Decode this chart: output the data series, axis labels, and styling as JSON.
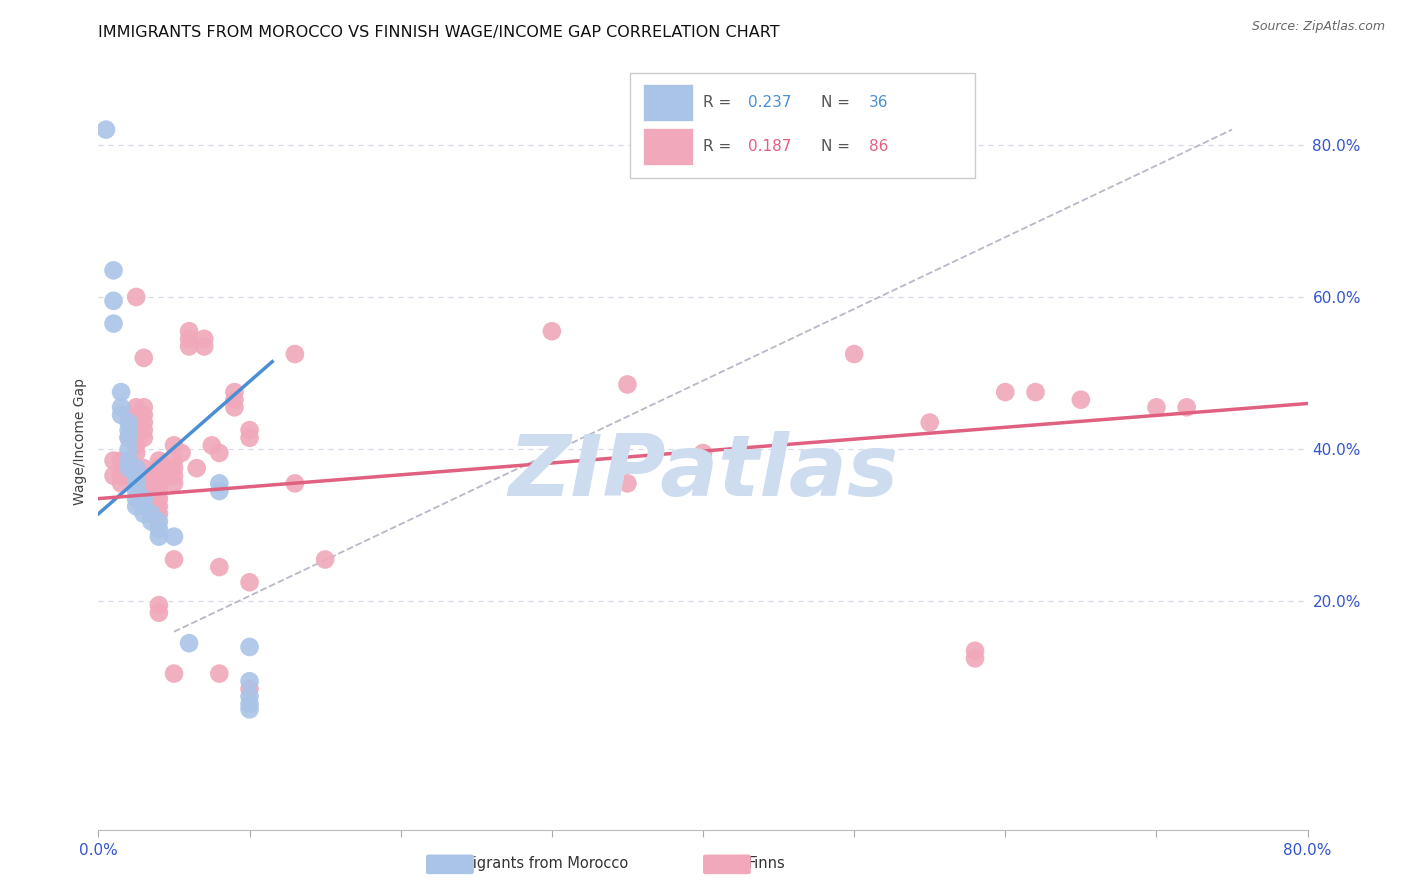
{
  "title": "IMMIGRANTS FROM MOROCCO VS FINNISH WAGE/INCOME GAP CORRELATION CHART",
  "source": "Source: ZipAtlas.com",
  "ylabel": "Wage/Income Gap",
  "watermark": "ZIPatlas",
  "watermark_color": "#cddcef",
  "blue_color": "#aac4e8",
  "pink_color": "#f0a8ba",
  "blue_line_color": "#4a8fd4",
  "pink_line_color": "#e06080",
  "dashed_line_color": "#b8b8c8",
  "grid_color": "#d8d8e8",
  "xmin": 0.0,
  "xmax": 0.8,
  "ymin": -0.1,
  "ymax": 0.92,
  "blue_scatter": [
    [
      0.005,
      0.82
    ],
    [
      0.01,
      0.635
    ],
    [
      0.01,
      0.595
    ],
    [
      0.01,
      0.565
    ],
    [
      0.015,
      0.475
    ],
    [
      0.015,
      0.455
    ],
    [
      0.015,
      0.445
    ],
    [
      0.02,
      0.435
    ],
    [
      0.02,
      0.425
    ],
    [
      0.02,
      0.415
    ],
    [
      0.02,
      0.4
    ],
    [
      0.02,
      0.385
    ],
    [
      0.02,
      0.375
    ],
    [
      0.025,
      0.375
    ],
    [
      0.025,
      0.365
    ],
    [
      0.025,
      0.355
    ],
    [
      0.025,
      0.345
    ],
    [
      0.025,
      0.335
    ],
    [
      0.025,
      0.325
    ],
    [
      0.03,
      0.335
    ],
    [
      0.03,
      0.325
    ],
    [
      0.03,
      0.315
    ],
    [
      0.035,
      0.315
    ],
    [
      0.035,
      0.305
    ],
    [
      0.04,
      0.305
    ],
    [
      0.04,
      0.295
    ],
    [
      0.04,
      0.285
    ],
    [
      0.05,
      0.285
    ],
    [
      0.06,
      0.145
    ],
    [
      0.08,
      0.345
    ],
    [
      0.08,
      0.355
    ],
    [
      0.1,
      0.095
    ],
    [
      0.1,
      0.075
    ],
    [
      0.1,
      0.14
    ],
    [
      0.1,
      0.065
    ],
    [
      0.1,
      0.058
    ]
  ],
  "pink_scatter": [
    [
      0.01,
      0.385
    ],
    [
      0.01,
      0.365
    ],
    [
      0.015,
      0.385
    ],
    [
      0.015,
      0.365
    ],
    [
      0.015,
      0.355
    ],
    [
      0.02,
      0.445
    ],
    [
      0.02,
      0.415
    ],
    [
      0.02,
      0.385
    ],
    [
      0.02,
      0.375
    ],
    [
      0.02,
      0.365
    ],
    [
      0.025,
      0.6
    ],
    [
      0.025,
      0.455
    ],
    [
      0.025,
      0.435
    ],
    [
      0.025,
      0.425
    ],
    [
      0.025,
      0.415
    ],
    [
      0.025,
      0.405
    ],
    [
      0.025,
      0.395
    ],
    [
      0.025,
      0.375
    ],
    [
      0.025,
      0.365
    ],
    [
      0.03,
      0.52
    ],
    [
      0.03,
      0.455
    ],
    [
      0.03,
      0.445
    ],
    [
      0.03,
      0.435
    ],
    [
      0.03,
      0.425
    ],
    [
      0.03,
      0.415
    ],
    [
      0.03,
      0.375
    ],
    [
      0.03,
      0.355
    ],
    [
      0.03,
      0.345
    ],
    [
      0.035,
      0.365
    ],
    [
      0.035,
      0.355
    ],
    [
      0.04,
      0.385
    ],
    [
      0.04,
      0.375
    ],
    [
      0.04,
      0.365
    ],
    [
      0.04,
      0.355
    ],
    [
      0.04,
      0.345
    ],
    [
      0.04,
      0.335
    ],
    [
      0.04,
      0.325
    ],
    [
      0.04,
      0.315
    ],
    [
      0.04,
      0.195
    ],
    [
      0.04,
      0.185
    ],
    [
      0.045,
      0.375
    ],
    [
      0.045,
      0.365
    ],
    [
      0.05,
      0.405
    ],
    [
      0.05,
      0.385
    ],
    [
      0.05,
      0.375
    ],
    [
      0.05,
      0.365
    ],
    [
      0.05,
      0.355
    ],
    [
      0.05,
      0.255
    ],
    [
      0.05,
      0.105
    ],
    [
      0.055,
      0.395
    ],
    [
      0.06,
      0.555
    ],
    [
      0.06,
      0.545
    ],
    [
      0.06,
      0.535
    ],
    [
      0.065,
      0.375
    ],
    [
      0.07,
      0.545
    ],
    [
      0.07,
      0.535
    ],
    [
      0.075,
      0.405
    ],
    [
      0.08,
      0.395
    ],
    [
      0.08,
      0.245
    ],
    [
      0.08,
      0.105
    ],
    [
      0.09,
      0.475
    ],
    [
      0.09,
      0.465
    ],
    [
      0.09,
      0.455
    ],
    [
      0.1,
      0.425
    ],
    [
      0.1,
      0.415
    ],
    [
      0.1,
      0.225
    ],
    [
      0.1,
      0.085
    ],
    [
      0.13,
      0.525
    ],
    [
      0.13,
      0.355
    ],
    [
      0.15,
      0.255
    ],
    [
      0.3,
      0.555
    ],
    [
      0.35,
      0.485
    ],
    [
      0.35,
      0.355
    ],
    [
      0.4,
      0.395
    ],
    [
      0.5,
      0.525
    ],
    [
      0.55,
      0.435
    ],
    [
      0.58,
      0.135
    ],
    [
      0.58,
      0.125
    ],
    [
      0.6,
      0.475
    ],
    [
      0.62,
      0.475
    ],
    [
      0.65,
      0.465
    ],
    [
      0.7,
      0.455
    ],
    [
      0.72,
      0.455
    ]
  ],
  "blue_trendline_x": [
    0.0,
    0.115
  ],
  "blue_trendline_y": [
    0.315,
    0.515
  ],
  "pink_trendline_x": [
    0.0,
    0.8
  ],
  "pink_trendline_y": [
    0.335,
    0.46
  ],
  "dashed_line_x": [
    0.05,
    0.75
  ],
  "dashed_line_y": [
    0.16,
    0.82
  ]
}
